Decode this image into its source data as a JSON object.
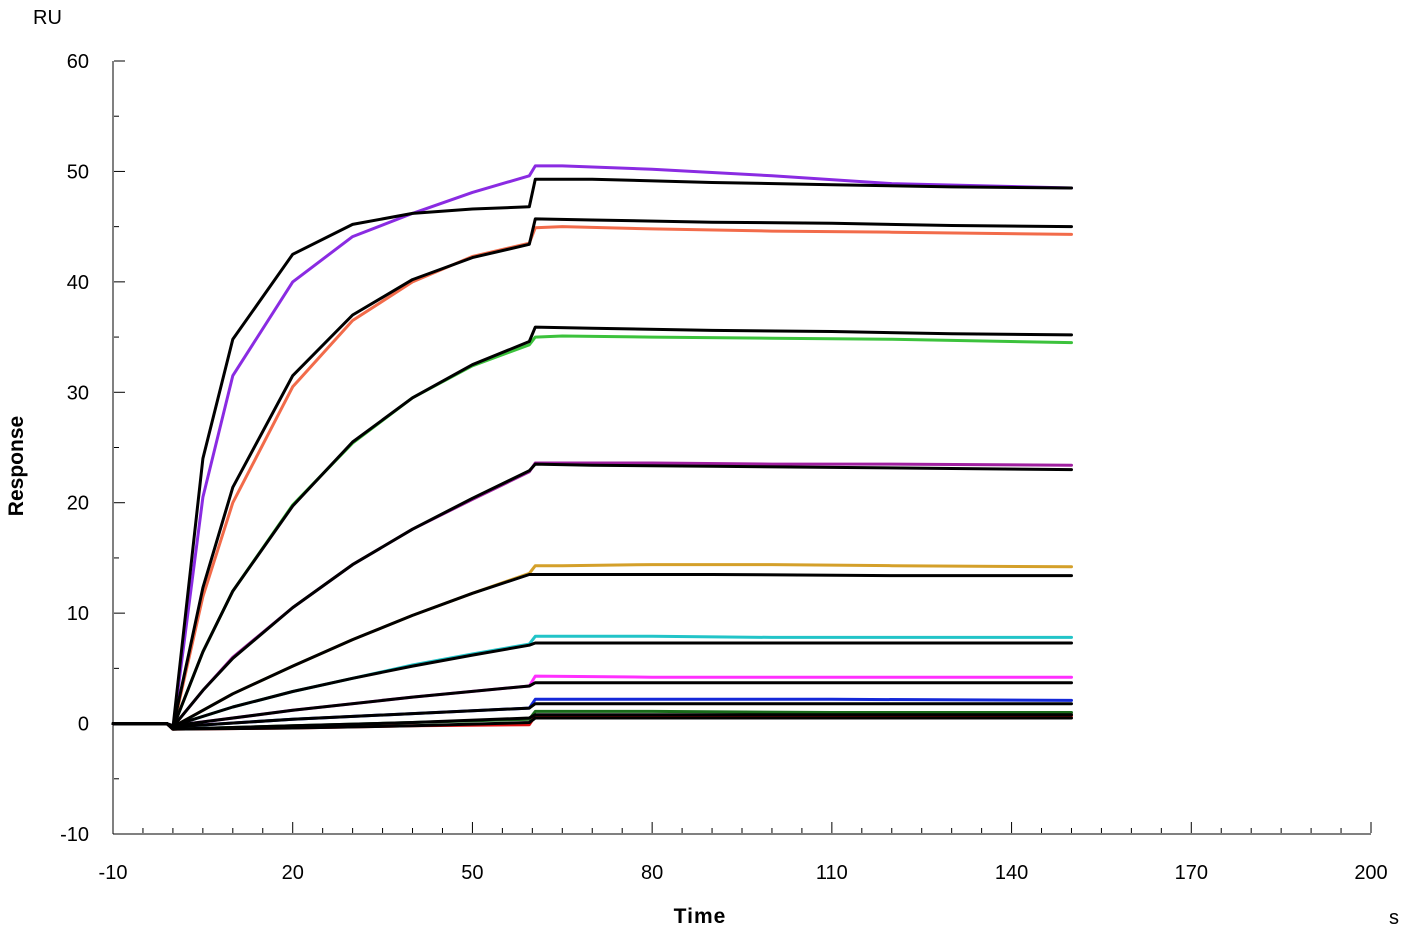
{
  "chart_data": {
    "type": "line",
    "title": "",
    "xlabel": "Time",
    "ylabel": "Response",
    "x_unit": "s",
    "y_unit": "RU",
    "xlim": [
      -10,
      200
    ],
    "ylim": [
      -10,
      60
    ],
    "x_ticks": [
      -10,
      20,
      50,
      80,
      110,
      140,
      170,
      200
    ],
    "y_ticks": [
      -10,
      0,
      10,
      20,
      30,
      40,
      50,
      60
    ],
    "x_minor_step": 5,
    "y_minor_step": 5,
    "grid": false,
    "legend": "none",
    "colors": {
      "purple": "#8a2be2",
      "orange": "#f26b4a",
      "green": "#3cc23c",
      "magenta_dark": "#a020a0",
      "gold": "#d4a02a",
      "cyan": "#22c4c8",
      "pink": "#ff30ff",
      "blue": "#1428d8",
      "dark_green": "#1a6a1a",
      "red": "#e01010",
      "fit": "#000000"
    },
    "series": [
      {
        "color": "purple",
        "x": [
          -10,
          -1,
          0,
          5,
          10,
          20,
          30,
          40,
          50,
          59.5,
          60.5,
          65,
          80,
          100,
          120,
          150
        ],
        "values": [
          0,
          0,
          -0.5,
          20.5,
          31.5,
          40.0,
          44.1,
          46.2,
          48.1,
          49.6,
          50.5,
          50.5,
          50.2,
          49.6,
          48.9,
          48.5
        ]
      },
      {
        "color": "orange",
        "x": [
          -10,
          -1,
          0,
          5,
          10,
          20,
          30,
          40,
          50,
          59.5,
          60.5,
          65,
          80,
          100,
          120,
          150
        ],
        "values": [
          0,
          0,
          -0.5,
          11.5,
          20.0,
          30.5,
          36.5,
          40.0,
          42.3,
          43.5,
          44.9,
          45.0,
          44.8,
          44.6,
          44.5,
          44.3
        ]
      },
      {
        "color": "green",
        "x": [
          -10,
          -1,
          0,
          5,
          10,
          20,
          30,
          40,
          50,
          59.5,
          60.5,
          65,
          80,
          100,
          120,
          150
        ],
        "values": [
          0,
          0,
          -0.4,
          6.5,
          12.0,
          19.8,
          25.4,
          29.5,
          32.4,
          34.3,
          35.0,
          35.1,
          35.0,
          34.9,
          34.8,
          34.5
        ]
      },
      {
        "color": "magenta_dark",
        "x": [
          -10,
          -1,
          0,
          5,
          10,
          20,
          30,
          40,
          50,
          59.5,
          60.5,
          65,
          80,
          100,
          120,
          150
        ],
        "values": [
          0,
          0,
          -0.3,
          3.0,
          6.0,
          10.5,
          14.4,
          17.6,
          20.3,
          22.8,
          23.6,
          23.6,
          23.6,
          23.5,
          23.5,
          23.4
        ]
      },
      {
        "color": "gold",
        "x": [
          -10,
          -1,
          0,
          10,
          20,
          30,
          40,
          50,
          59.5,
          60.5,
          65,
          80,
          100,
          120,
          150
        ],
        "values": [
          0,
          0,
          -0.3,
          2.7,
          5.2,
          7.6,
          9.8,
          11.8,
          13.6,
          14.3,
          14.3,
          14.4,
          14.4,
          14.3,
          14.2
        ]
      },
      {
        "color": "cyan",
        "x": [
          -10,
          -1,
          0,
          10,
          20,
          30,
          40,
          50,
          59.5,
          60.5,
          65,
          80,
          100,
          120,
          150
        ],
        "values": [
          0,
          0,
          -0.2,
          1.5,
          2.9,
          4.1,
          5.3,
          6.3,
          7.2,
          7.9,
          7.9,
          7.9,
          7.8,
          7.8,
          7.8
        ]
      },
      {
        "color": "pink",
        "x": [
          -10,
          -1,
          0,
          20,
          40,
          59.5,
          60.5,
          80,
          110,
          150
        ],
        "values": [
          0,
          0,
          -0.2,
          1.2,
          2.4,
          3.4,
          4.3,
          4.2,
          4.2,
          4.2
        ]
      },
      {
        "color": "blue",
        "x": [
          -10,
          -1,
          0,
          20,
          40,
          59.5,
          60.5,
          80,
          110,
          150
        ],
        "values": [
          0,
          0,
          -0.3,
          0.4,
          0.9,
          1.4,
          2.2,
          2.2,
          2.2,
          2.1
        ]
      },
      {
        "color": "dark_green",
        "x": [
          -10,
          -1,
          0,
          20,
          40,
          59.5,
          60.5,
          80,
          110,
          150
        ],
        "values": [
          0,
          0,
          -0.5,
          -0.2,
          0.1,
          0.4,
          1.1,
          1.1,
          1.0,
          1.0
        ]
      },
      {
        "color": "red",
        "x": [
          -10,
          -1,
          0,
          20,
          40,
          59.5,
          60.5,
          80,
          110,
          150
        ],
        "values": [
          0,
          0,
          -0.5,
          -0.4,
          -0.2,
          -0.1,
          0.7,
          0.7,
          0.7,
          0.7
        ]
      }
    ],
    "fits": [
      {
        "x": [
          -10,
          -1,
          0,
          5,
          10,
          20,
          30,
          40,
          50,
          59.5,
          60.5,
          70,
          90,
          110,
          130,
          150
        ],
        "values": [
          0,
          0,
          -0.4,
          24.0,
          34.8,
          42.5,
          45.2,
          46.2,
          46.6,
          46.8,
          49.3,
          49.3,
          49.0,
          48.8,
          48.6,
          48.5
        ]
      },
      {
        "x": [
          -10,
          -1,
          0,
          5,
          10,
          20,
          30,
          40,
          50,
          59.5,
          60.5,
          70,
          90,
          110,
          130,
          150
        ],
        "values": [
          0,
          0,
          -0.4,
          12.3,
          21.4,
          31.5,
          37.0,
          40.2,
          42.2,
          43.4,
          45.7,
          45.6,
          45.4,
          45.3,
          45.1,
          45.0
        ]
      },
      {
        "x": [
          -10,
          -1,
          0,
          5,
          10,
          20,
          30,
          40,
          50,
          59.5,
          60.5,
          70,
          90,
          110,
          130,
          150
        ],
        "values": [
          0,
          0,
          -0.4,
          6.5,
          12.0,
          19.7,
          25.5,
          29.5,
          32.5,
          34.6,
          35.9,
          35.8,
          35.6,
          35.5,
          35.3,
          35.2
        ]
      },
      {
        "x": [
          -10,
          -1,
          0,
          5,
          10,
          20,
          30,
          40,
          50,
          59.5,
          60.5,
          70,
          90,
          110,
          130,
          150
        ],
        "values": [
          0,
          0,
          -0.3,
          3.0,
          5.9,
          10.5,
          14.4,
          17.6,
          20.4,
          22.9,
          23.5,
          23.4,
          23.3,
          23.2,
          23.1,
          23.0
        ]
      },
      {
        "x": [
          -10,
          -1,
          0,
          10,
          20,
          30,
          40,
          50,
          59.5,
          60.5,
          90,
          120,
          150
        ],
        "values": [
          0,
          0,
          -0.3,
          2.7,
          5.2,
          7.6,
          9.8,
          11.8,
          13.5,
          13.5,
          13.5,
          13.4,
          13.4
        ]
      },
      {
        "x": [
          -10,
          -1,
          0,
          10,
          20,
          30,
          40,
          50,
          59.5,
          60.5,
          90,
          120,
          150
        ],
        "values": [
          0,
          0,
          -0.2,
          1.5,
          2.9,
          4.1,
          5.2,
          6.2,
          7.1,
          7.3,
          7.3,
          7.3,
          7.3
        ]
      },
      {
        "x": [
          -10,
          -1,
          0,
          20,
          40,
          59.5,
          60.5,
          90,
          120,
          150
        ],
        "values": [
          0,
          0,
          -0.2,
          1.2,
          2.4,
          3.4,
          3.7,
          3.7,
          3.7,
          3.7
        ]
      },
      {
        "x": [
          -10,
          -1,
          0,
          20,
          40,
          59.5,
          60.5,
          90,
          120,
          150
        ],
        "values": [
          0,
          0,
          -0.3,
          0.4,
          0.9,
          1.4,
          1.8,
          1.8,
          1.8,
          1.8
        ]
      },
      {
        "x": [
          -10,
          -1,
          0,
          20,
          40,
          59.5,
          60.5,
          90,
          120,
          150
        ],
        "values": [
          0,
          0,
          -0.5,
          -0.2,
          0.1,
          0.5,
          0.8,
          0.8,
          0.8,
          0.8
        ]
      },
      {
        "x": [
          -10,
          -1,
          0,
          20,
          40,
          59.5,
          60.5,
          90,
          120,
          150
        ],
        "values": [
          0,
          0,
          -0.5,
          -0.4,
          -0.2,
          0.1,
          0.5,
          0.5,
          0.5,
          0.5
        ]
      }
    ]
  }
}
